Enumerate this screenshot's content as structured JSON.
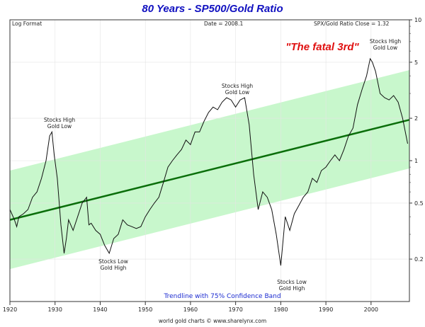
{
  "chart_data": {
    "type": "line",
    "title": "80 Years - SP500/Gold Ratio",
    "scale": "log",
    "header": {
      "left": "Log Format",
      "center": "Date = 2008.1",
      "right": "SPX/Gold Ratio Close = 1.32"
    },
    "xlim": [
      1920,
      2008.5
    ],
    "ylim": [
      0.1,
      10
    ],
    "x_ticks": [
      "1920",
      "1930",
      "1940",
      "1950",
      "1960",
      "1970",
      "1980",
      "1990",
      "2000"
    ],
    "y_ticks": [
      "10",
      "5",
      "2",
      "1",
      "0.5",
      "0.2"
    ],
    "series": [
      {
        "x": [
          1920,
          1921,
          1921.5,
          1922,
          1923,
          1924,
          1925,
          1926,
          1927,
          1928,
          1928.8,
          1929.3,
          1929.8,
          1930.5,
          1931.3,
          1932,
          1932.5,
          1933,
          1934,
          1935,
          1936,
          1937,
          1937.5,
          1938,
          1939,
          1940,
          1941,
          1942,
          1943,
          1944,
          1945,
          1946,
          1947,
          1948,
          1949,
          1950,
          1951,
          1952,
          1953,
          1954,
          1955,
          1956,
          1957,
          1958,
          1959,
          1960,
          1961,
          1962,
          1963,
          1964,
          1965,
          1966,
          1967,
          1968,
          1969,
          1970,
          1971,
          1972,
          1973,
          1974,
          1975,
          1976,
          1977,
          1978,
          1979,
          1980,
          1981,
          1982,
          1983,
          1984,
          1985,
          1986,
          1987,
          1988,
          1989,
          1990,
          1991,
          1992,
          1993,
          1994,
          1995,
          1996,
          1997,
          1998,
          1999,
          1999.8,
          2000.3,
          2001,
          2002,
          2003,
          2004,
          2005,
          2006,
          2007,
          2008.1
        ],
        "values": [
          0.45,
          0.38,
          0.34,
          0.4,
          0.42,
          0.45,
          0.55,
          0.6,
          0.75,
          1.0,
          1.5,
          1.6,
          1.1,
          0.75,
          0.35,
          0.22,
          0.28,
          0.38,
          0.32,
          0.4,
          0.5,
          0.55,
          0.35,
          0.36,
          0.32,
          0.3,
          0.25,
          0.22,
          0.28,
          0.3,
          0.38,
          0.35,
          0.34,
          0.33,
          0.34,
          0.4,
          0.45,
          0.5,
          0.55,
          0.7,
          0.9,
          1.0,
          1.1,
          1.2,
          1.4,
          1.3,
          1.6,
          1.6,
          1.9,
          2.2,
          2.4,
          2.3,
          2.6,
          2.8,
          2.7,
          2.4,
          2.7,
          2.8,
          1.8,
          0.8,
          0.45,
          0.6,
          0.55,
          0.45,
          0.3,
          0.18,
          0.4,
          0.32,
          0.42,
          0.48,
          0.55,
          0.6,
          0.75,
          0.7,
          0.85,
          0.9,
          1.0,
          1.1,
          1.0,
          1.2,
          1.5,
          1.7,
          2.5,
          3.2,
          4.0,
          5.3,
          5.0,
          4.3,
          3.0,
          2.8,
          2.7,
          2.9,
          2.6,
          2.0,
          1.32
        ]
      }
    ],
    "trendline": {
      "x": [
        1920,
        2008.5
      ],
      "y": [
        0.38,
        1.95
      ]
    },
    "confidence_band": {
      "upper": [
        0.85,
        4.4
      ],
      "lower": [
        0.17,
        0.88
      ]
    },
    "band_label": "Trendline with 75% Confidence Band",
    "annotations": [
      {
        "text": "\"The fatal 3rd\"",
        "color": "#e01010"
      },
      {
        "text": "Stocks High Gold Low",
        "x": 1929
      },
      {
        "text": "Stocks Low Gold High",
        "x": 1942
      },
      {
        "text": "Stocks High Gold Low",
        "x": 1966
      },
      {
        "text": "Stocks Low Gold High",
        "x": 1980
      },
      {
        "text": "Stocks High Gold Low",
        "x": 2000
      }
    ],
    "credit": "world gold charts © www.sharelynx.com",
    "colors": {
      "band": "#c8f7cc",
      "trend": "#0a6e0a",
      "line": "#111111",
      "title": "#1010c0",
      "band_label": "#1a2ad0"
    }
  }
}
